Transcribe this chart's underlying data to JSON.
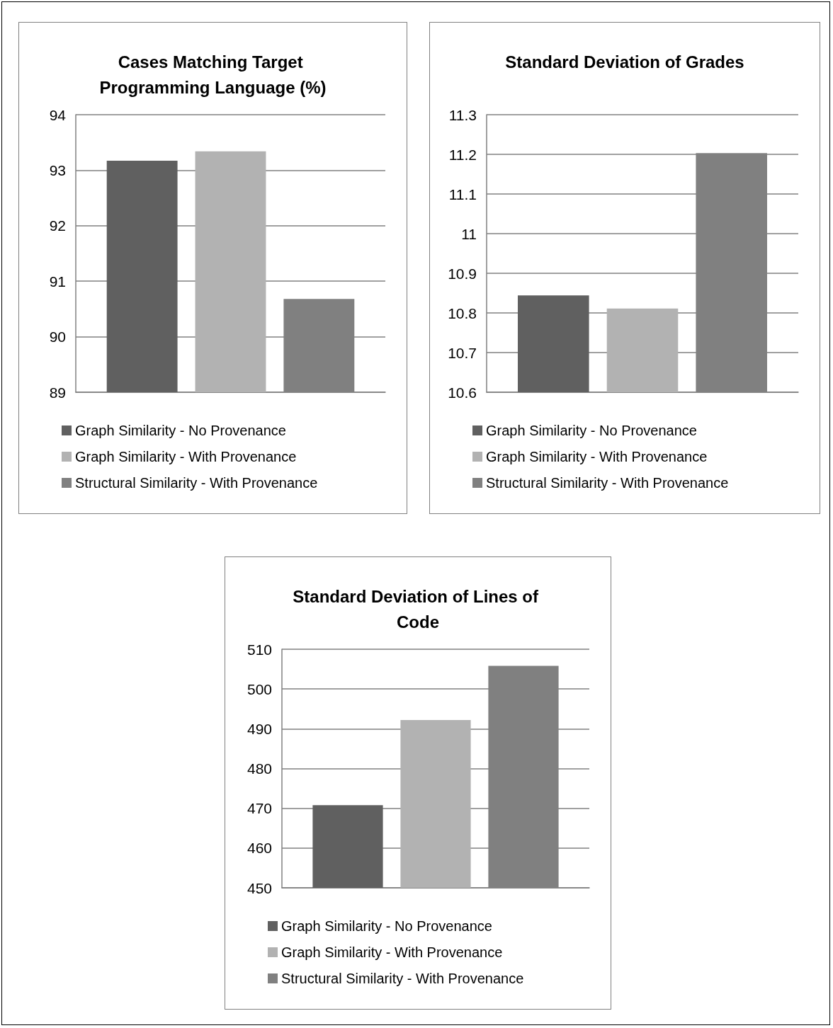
{
  "chart_data": [
    {
      "type": "bar",
      "title": "Cases Matching Target Programming Language (%)",
      "categories": [
        null
      ],
      "series": [
        {
          "name": "Graph Similarity - No Provenance",
          "color": "#606060",
          "values": [
            93.17
          ]
        },
        {
          "name": "Graph Similarity - With Provenance",
          "color": "#b2b2b2",
          "values": [
            93.34
          ]
        },
        {
          "name": "Structural Similarity - With Provenance",
          "color": "#808080",
          "values": [
            90.68
          ]
        }
      ],
      "ylim": [
        89,
        94
      ],
      "yticks": [
        89,
        90,
        91,
        92,
        93,
        94
      ],
      "grid": "y",
      "legend": "bottom"
    },
    {
      "type": "bar",
      "title": "Standard Deviation of Grades",
      "categories": [
        null
      ],
      "series": [
        {
          "name": "Graph Similarity - No Provenance",
          "color": "#606060",
          "values": [
            10.844
          ]
        },
        {
          "name": "Graph Similarity - With Provenance",
          "color": "#b2b2b2",
          "values": [
            10.811
          ]
        },
        {
          "name": "Structural Similarity - With Provenance",
          "color": "#808080",
          "values": [
            11.203
          ]
        }
      ],
      "ylim": [
        10.6,
        11.3
      ],
      "yticks": [
        10.6,
        10.7,
        10.8,
        10.9,
        11,
        11.1,
        11.2,
        11.3
      ],
      "grid": "y",
      "legend": "bottom"
    },
    {
      "type": "bar",
      "title": "Standard Deviation of Lines of Code",
      "categories": [
        null
      ],
      "series": [
        {
          "name": "Graph Similarity - No Provenance",
          "color": "#606060",
          "values": [
            470.8
          ]
        },
        {
          "name": "Graph Similarity - With Provenance",
          "color": "#b2b2b2",
          "values": [
            492.2
          ]
        },
        {
          "name": "Structural Similarity - With Provenance",
          "color": "#808080",
          "values": [
            505.8
          ]
        }
      ],
      "ylim": [
        450,
        510
      ],
      "yticks": [
        450,
        460,
        470,
        480,
        490,
        500,
        510
      ],
      "grid": "y",
      "legend": "bottom"
    }
  ]
}
